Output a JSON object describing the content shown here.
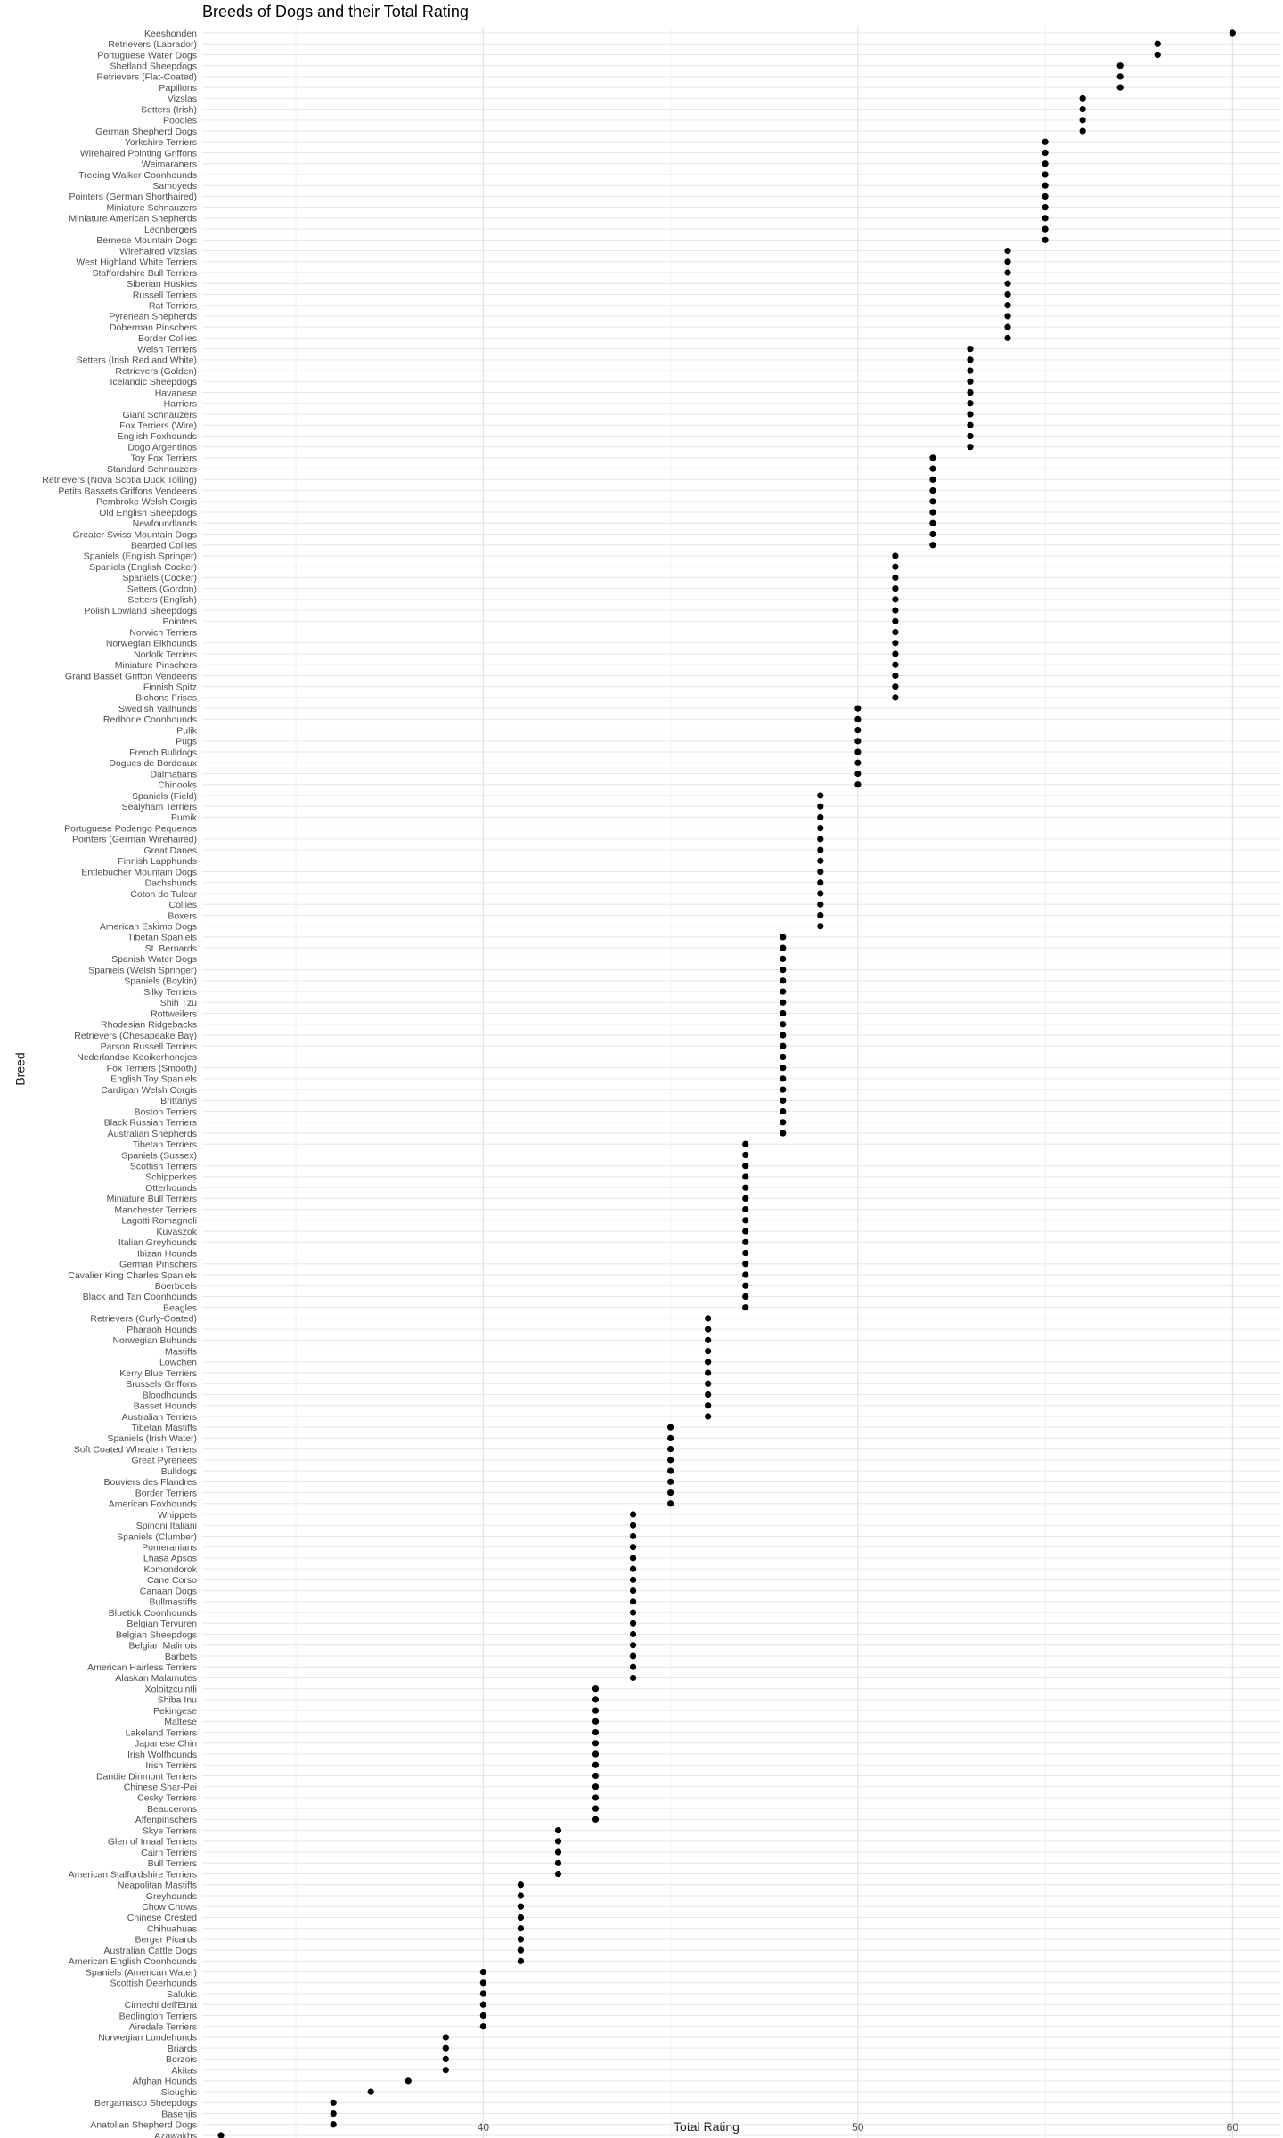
{
  "chart_data": {
    "type": "scatter",
    "title": "Breeds of Dogs and their Total Rating",
    "xlabel": "Total Rating",
    "ylabel": "Breed",
    "xlim": [
      32.5,
      61.3
    ],
    "x_ticks": [
      40,
      50,
      60
    ],
    "x_tick_labels": [
      "40",
      "50",
      "60"
    ],
    "grid": true,
    "points": [
      {
        "breed": "Keeshonden",
        "rating": 60
      },
      {
        "breed": "Retrievers (Labrador)",
        "rating": 58
      },
      {
        "breed": "Portuguese Water Dogs",
        "rating": 58
      },
      {
        "breed": "Shetland Sheepdogs",
        "rating": 57
      },
      {
        "breed": "Retrievers (Flat-Coated)",
        "rating": 57
      },
      {
        "breed": "Papillons",
        "rating": 57
      },
      {
        "breed": "Vizslas",
        "rating": 56
      },
      {
        "breed": "Setters (Irish)",
        "rating": 56
      },
      {
        "breed": "Poodles",
        "rating": 56
      },
      {
        "breed": "German Shepherd Dogs",
        "rating": 56
      },
      {
        "breed": "Yorkshire Terriers",
        "rating": 55
      },
      {
        "breed": "Wirehaired Pointing Griffons",
        "rating": 55
      },
      {
        "breed": "Weimaraners",
        "rating": 55
      },
      {
        "breed": "Treeing Walker Coonhounds",
        "rating": 55
      },
      {
        "breed": "Samoyeds",
        "rating": 55
      },
      {
        "breed": "Pointers (German Shorthaired)",
        "rating": 55
      },
      {
        "breed": "Miniature Schnauzers",
        "rating": 55
      },
      {
        "breed": "Miniature American Shepherds",
        "rating": 55
      },
      {
        "breed": "Leonbergers",
        "rating": 55
      },
      {
        "breed": "Bernese Mountain Dogs",
        "rating": 55
      },
      {
        "breed": "Wirehaired Vizslas",
        "rating": 54
      },
      {
        "breed": "West Highland White Terriers",
        "rating": 54
      },
      {
        "breed": "Staffordshire Bull Terriers",
        "rating": 54
      },
      {
        "breed": "Siberian Huskies",
        "rating": 54
      },
      {
        "breed": "Russell Terriers",
        "rating": 54
      },
      {
        "breed": "Rat Terriers",
        "rating": 54
      },
      {
        "breed": "Pyrenean Shepherds",
        "rating": 54
      },
      {
        "breed": "Doberman Pinschers",
        "rating": 54
      },
      {
        "breed": "Border Collies",
        "rating": 54
      },
      {
        "breed": "Welsh Terriers",
        "rating": 53
      },
      {
        "breed": "Setters (Irish Red and White)",
        "rating": 53
      },
      {
        "breed": "Retrievers (Golden)",
        "rating": 53
      },
      {
        "breed": "Icelandic Sheepdogs",
        "rating": 53
      },
      {
        "breed": "Havanese",
        "rating": 53
      },
      {
        "breed": "Harriers",
        "rating": 53
      },
      {
        "breed": "Giant Schnauzers",
        "rating": 53
      },
      {
        "breed": "Fox Terriers (Wire)",
        "rating": 53
      },
      {
        "breed": "English Foxhounds",
        "rating": 53
      },
      {
        "breed": "Dogo Argentinos",
        "rating": 53
      },
      {
        "breed": "Toy Fox Terriers",
        "rating": 52
      },
      {
        "breed": "Standard Schnauzers",
        "rating": 52
      },
      {
        "breed": "Retrievers (Nova Scotia Duck Tolling)",
        "rating": 52
      },
      {
        "breed": "Petits Bassets Griffons Vendeens",
        "rating": 52
      },
      {
        "breed": "Pembroke Welsh Corgis",
        "rating": 52
      },
      {
        "breed": "Old English Sheepdogs",
        "rating": 52
      },
      {
        "breed": "Newfoundlands",
        "rating": 52
      },
      {
        "breed": "Greater Swiss Mountain Dogs",
        "rating": 52
      },
      {
        "breed": "Bearded Collies",
        "rating": 52
      },
      {
        "breed": "Spaniels (English Springer)",
        "rating": 51
      },
      {
        "breed": "Spaniels (English Cocker)",
        "rating": 51
      },
      {
        "breed": "Spaniels (Cocker)",
        "rating": 51
      },
      {
        "breed": "Setters (Gordon)",
        "rating": 51
      },
      {
        "breed": "Setters (English)",
        "rating": 51
      },
      {
        "breed": "Polish Lowland Sheepdogs",
        "rating": 51
      },
      {
        "breed": "Pointers",
        "rating": 51
      },
      {
        "breed": "Norwich Terriers",
        "rating": 51
      },
      {
        "breed": "Norwegian Elkhounds",
        "rating": 51
      },
      {
        "breed": "Norfolk Terriers",
        "rating": 51
      },
      {
        "breed": "Miniature Pinschers",
        "rating": 51
      },
      {
        "breed": "Grand Basset Griffon Vendeens",
        "rating": 51
      },
      {
        "breed": "Finnish Spitz",
        "rating": 51
      },
      {
        "breed": "Bichons Frises",
        "rating": 51
      },
      {
        "breed": "Swedish Vallhunds",
        "rating": 50
      },
      {
        "breed": "Redbone Coonhounds",
        "rating": 50
      },
      {
        "breed": "Pulik",
        "rating": 50
      },
      {
        "breed": "Pugs",
        "rating": 50
      },
      {
        "breed": "French Bulldogs",
        "rating": 50
      },
      {
        "breed": "Dogues de Bordeaux",
        "rating": 50
      },
      {
        "breed": "Dalmatians",
        "rating": 50
      },
      {
        "breed": "Chinooks",
        "rating": 50
      },
      {
        "breed": "Spaniels (Field)",
        "rating": 49
      },
      {
        "breed": "Sealyham Terriers",
        "rating": 49
      },
      {
        "breed": "Pumik",
        "rating": 49
      },
      {
        "breed": "Portuguese Podengo Pequenos",
        "rating": 49
      },
      {
        "breed": "Pointers (German Wirehaired)",
        "rating": 49
      },
      {
        "breed": "Great Danes",
        "rating": 49
      },
      {
        "breed": "Finnish Lapphunds",
        "rating": 49
      },
      {
        "breed": "Entlebucher Mountain Dogs",
        "rating": 49
      },
      {
        "breed": "Dachshunds",
        "rating": 49
      },
      {
        "breed": "Coton de Tulear",
        "rating": 49
      },
      {
        "breed": "Collies",
        "rating": 49
      },
      {
        "breed": "Boxers",
        "rating": 49
      },
      {
        "breed": "American Eskimo Dogs",
        "rating": 49
      },
      {
        "breed": "Tibetan Spaniels",
        "rating": 48
      },
      {
        "breed": "St. Bernards",
        "rating": 48
      },
      {
        "breed": "Spanish Water Dogs",
        "rating": 48
      },
      {
        "breed": "Spaniels (Welsh Springer)",
        "rating": 48
      },
      {
        "breed": "Spaniels (Boykin)",
        "rating": 48
      },
      {
        "breed": "Silky Terriers",
        "rating": 48
      },
      {
        "breed": "Shih Tzu",
        "rating": 48
      },
      {
        "breed": "Rottweilers",
        "rating": 48
      },
      {
        "breed": "Rhodesian Ridgebacks",
        "rating": 48
      },
      {
        "breed": "Retrievers (Chesapeake Bay)",
        "rating": 48
      },
      {
        "breed": "Parson Russell Terriers",
        "rating": 48
      },
      {
        "breed": "Nederlandse Kooikerhondjes",
        "rating": 48
      },
      {
        "breed": "Fox Terriers (Smooth)",
        "rating": 48
      },
      {
        "breed": "English Toy Spaniels",
        "rating": 48
      },
      {
        "breed": "Cardigan Welsh Corgis",
        "rating": 48
      },
      {
        "breed": "Brittanys",
        "rating": 48
      },
      {
        "breed": "Boston Terriers",
        "rating": 48
      },
      {
        "breed": "Black Russian Terriers",
        "rating": 48
      },
      {
        "breed": "Australian Shepherds",
        "rating": 48
      },
      {
        "breed": "Tibetan Terriers",
        "rating": 47
      },
      {
        "breed": "Spaniels (Sussex)",
        "rating": 47
      },
      {
        "breed": "Scottish Terriers",
        "rating": 47
      },
      {
        "breed": "Schipperkes",
        "rating": 47
      },
      {
        "breed": "Otterhounds",
        "rating": 47
      },
      {
        "breed": "Miniature Bull Terriers",
        "rating": 47
      },
      {
        "breed": "Manchester Terriers",
        "rating": 47
      },
      {
        "breed": "Lagotti Romagnoli",
        "rating": 47
      },
      {
        "breed": "Kuvaszok",
        "rating": 47
      },
      {
        "breed": "Italian Greyhounds",
        "rating": 47
      },
      {
        "breed": "Ibizan Hounds",
        "rating": 47
      },
      {
        "breed": "German Pinschers",
        "rating": 47
      },
      {
        "breed": "Cavalier King Charles Spaniels",
        "rating": 47
      },
      {
        "breed": "Boerboels",
        "rating": 47
      },
      {
        "breed": "Black and Tan Coonhounds",
        "rating": 47
      },
      {
        "breed": "Beagles",
        "rating": 47
      },
      {
        "breed": "Retrievers (Curly-Coated)",
        "rating": 46
      },
      {
        "breed": "Pharaoh Hounds",
        "rating": 46
      },
      {
        "breed": "Norwegian Buhunds",
        "rating": 46
      },
      {
        "breed": "Mastiffs",
        "rating": 46
      },
      {
        "breed": "Lowchen",
        "rating": 46
      },
      {
        "breed": "Kerry Blue Terriers",
        "rating": 46
      },
      {
        "breed": "Brussels Griffons",
        "rating": 46
      },
      {
        "breed": "Bloodhounds",
        "rating": 46
      },
      {
        "breed": "Basset Hounds",
        "rating": 46
      },
      {
        "breed": "Australian Terriers",
        "rating": 46
      },
      {
        "breed": "Tibetan Mastiffs",
        "rating": 45
      },
      {
        "breed": "Spaniels (Irish Water)",
        "rating": 45
      },
      {
        "breed": "Soft Coated Wheaten Terriers",
        "rating": 45
      },
      {
        "breed": "Great Pyrenees",
        "rating": 45
      },
      {
        "breed": "Bulldogs",
        "rating": 45
      },
      {
        "breed": "Bouviers des Flandres",
        "rating": 45
      },
      {
        "breed": "Border Terriers",
        "rating": 45
      },
      {
        "breed": "American Foxhounds",
        "rating": 45
      },
      {
        "breed": "Whippets",
        "rating": 44
      },
      {
        "breed": "Spinoni Italiani",
        "rating": 44
      },
      {
        "breed": "Spaniels (Clumber)",
        "rating": 44
      },
      {
        "breed": "Pomeranians",
        "rating": 44
      },
      {
        "breed": "Lhasa Apsos",
        "rating": 44
      },
      {
        "breed": "Komondorok",
        "rating": 44
      },
      {
        "breed": "Cane Corso",
        "rating": 44
      },
      {
        "breed": "Canaan Dogs",
        "rating": 44
      },
      {
        "breed": "Bullmastiffs",
        "rating": 44
      },
      {
        "breed": "Bluetick Coonhounds",
        "rating": 44
      },
      {
        "breed": "Belgian Tervuren",
        "rating": 44
      },
      {
        "breed": "Belgian Sheepdogs",
        "rating": 44
      },
      {
        "breed": "Belgian Malinois",
        "rating": 44
      },
      {
        "breed": "Barbets",
        "rating": 44
      },
      {
        "breed": "American Hairless Terriers",
        "rating": 44
      },
      {
        "breed": "Alaskan Malamutes",
        "rating": 44
      },
      {
        "breed": "Xoloitzcuintli",
        "rating": 43
      },
      {
        "breed": "Shiba Inu",
        "rating": 43
      },
      {
        "breed": "Pekingese",
        "rating": 43
      },
      {
        "breed": "Maltese",
        "rating": 43
      },
      {
        "breed": "Lakeland Terriers",
        "rating": 43
      },
      {
        "breed": "Japanese Chin",
        "rating": 43
      },
      {
        "breed": "Irish Wolfhounds",
        "rating": 43
      },
      {
        "breed": "Irish Terriers",
        "rating": 43
      },
      {
        "breed": "Dandie Dinmont Terriers",
        "rating": 43
      },
      {
        "breed": "Chinese Shar-Pei",
        "rating": 43
      },
      {
        "breed": "Cesky Terriers",
        "rating": 43
      },
      {
        "breed": "Beaucerons",
        "rating": 43
      },
      {
        "breed": "Affenpinschers",
        "rating": 43
      },
      {
        "breed": "Skye Terriers",
        "rating": 42
      },
      {
        "breed": "Glen of Imaal Terriers",
        "rating": 42
      },
      {
        "breed": "Cairn Terriers",
        "rating": 42
      },
      {
        "breed": "Bull Terriers",
        "rating": 42
      },
      {
        "breed": "American Staffordshire Terriers",
        "rating": 42
      },
      {
        "breed": "Neapolitan Mastiffs",
        "rating": 41
      },
      {
        "breed": "Greyhounds",
        "rating": 41
      },
      {
        "breed": "Chow Chows",
        "rating": 41
      },
      {
        "breed": "Chinese Crested",
        "rating": 41
      },
      {
        "breed": "Chihuahuas",
        "rating": 41
      },
      {
        "breed": "Berger Picards",
        "rating": 41
      },
      {
        "breed": "Australian Cattle Dogs",
        "rating": 41
      },
      {
        "breed": "American English Coonhounds",
        "rating": 41
      },
      {
        "breed": "Spaniels (American Water)",
        "rating": 40
      },
      {
        "breed": "Scottish Deerhounds",
        "rating": 40
      },
      {
        "breed": "Salukis",
        "rating": 40
      },
      {
        "breed": "Cirnechi dell'Etna",
        "rating": 40
      },
      {
        "breed": "Bedlington Terriers",
        "rating": 40
      },
      {
        "breed": "Airedale Terriers",
        "rating": 40
      },
      {
        "breed": "Norwegian Lundehunds",
        "rating": 39
      },
      {
        "breed": "Briards",
        "rating": 39
      },
      {
        "breed": "Borzois",
        "rating": 39
      },
      {
        "breed": "Akitas",
        "rating": 39
      },
      {
        "breed": "Afghan Hounds",
        "rating": 38
      },
      {
        "breed": "Sloughis",
        "rating": 37
      },
      {
        "breed": "Bergamasco Sheepdogs",
        "rating": 36
      },
      {
        "breed": "Basenjis",
        "rating": 36
      },
      {
        "breed": "Anatolian Shepherd Dogs",
        "rating": 36
      },
      {
        "breed": "Azawakhs",
        "rating": 33
      }
    ]
  }
}
